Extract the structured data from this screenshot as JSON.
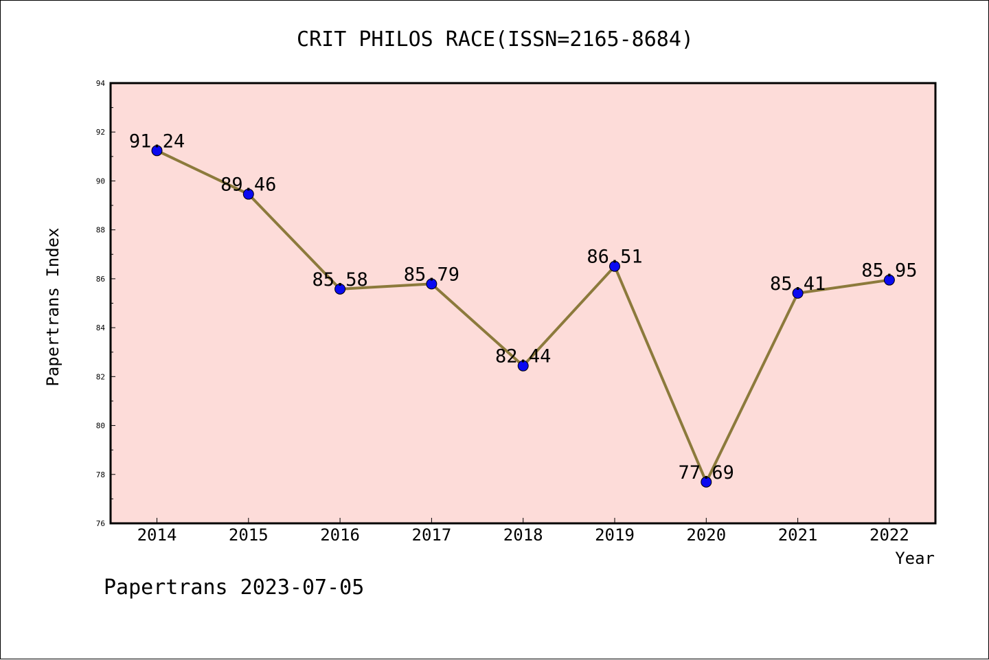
{
  "chart_data": {
    "type": "line",
    "title": "CRIT PHILOS RACE(ISSN=2165-8684)",
    "xlabel": "Year",
    "ylabel": "Papertrans Index",
    "categories": [
      "2014",
      "2015",
      "2016",
      "2017",
      "2018",
      "2019",
      "2020",
      "2021",
      "2022"
    ],
    "values": [
      91.24,
      89.46,
      85.58,
      85.79,
      82.44,
      86.51,
      77.69,
      85.41,
      85.95
    ],
    "data_labels": [
      "91.24",
      "89.46",
      "85.58",
      "85.79",
      "82.44",
      "86.51",
      "77.69",
      "85.41",
      "85.95"
    ],
    "ylim": [
      76,
      94
    ],
    "yticks": [
      "76",
      "78",
      "80",
      "82",
      "84",
      "86",
      "88",
      "90",
      "92",
      "94"
    ],
    "grid": false,
    "colors": {
      "plot_background": "#fddcd9",
      "line": "#8c7a3c",
      "marker": "#0a0af0",
      "axes": "#000000"
    }
  },
  "footer": {
    "text": "Papertrans 2023-07-05"
  }
}
